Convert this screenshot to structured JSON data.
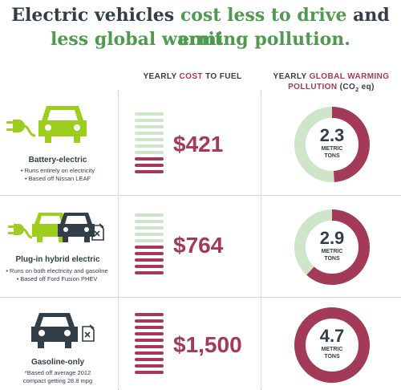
{
  "header": {
    "title_line1_part1": "Electric vehicles ",
    "title_line1_part2": "cost less to drive",
    "title_line1_part3": " and ",
    "title_line1_part4": "emit",
    "title_line2": "less global warming pollution."
  },
  "columns": {
    "cost_prefix": "YEARLY ",
    "cost_accent": "COST",
    "cost_suffix": " TO FUEL",
    "pollution_prefix": "YEARLY ",
    "pollution_accent": "GLOBAL WARMING POLLUTION",
    "pollution_suffix": " (CO",
    "pollution_sub": "2",
    "pollution_end": " eq)"
  },
  "colors": {
    "green": "#9ccd1f",
    "dark": "#333f48",
    "crimson": "#a33a57",
    "light_green": "#cfe5c9",
    "title_green": "#4f9a4e"
  },
  "chart_data": {
    "type": "bar",
    "categories": [
      "Battery-electric",
      "Plug-in hybrid electric",
      "Gasoline-only"
    ],
    "series": [
      {
        "name": "YEARLY COST TO FUEL",
        "values": [
          421,
          764,
          1500
        ],
        "labels": [
          "$421",
          "$764",
          "$1,500"
        ]
      },
      {
        "name": "YEARLY GLOBAL WARMING POLLUTION (CO2 eq)",
        "values": [
          2.3,
          2.9,
          4.7
        ],
        "labels": [
          "2.3",
          "2.9",
          "4.7"
        ]
      }
    ],
    "bars_filled": [
      3,
      5,
      10
    ],
    "bars_total": 10,
    "pollution_max": 4.7,
    "unit_line1": "METRIC",
    "unit_line2": "TONS"
  },
  "rows": [
    {
      "title": "Battery-electric",
      "notes": [
        "• Runs entirely on electricity",
        "• Based off Nissan LEAF"
      ],
      "icons": [
        "plug-icon",
        "car-icon"
      ]
    },
    {
      "title": "Plug-in hybrid electric",
      "notes": [
        "• Runs on both electricity and gasoline",
        "• Based off Ford Fusion PHEV"
      ],
      "icons": [
        "plug-icon",
        "car-icon",
        "car-icon",
        "fuel-can-icon"
      ]
    },
    {
      "title": "Gasoline-only",
      "notes": [
        "*Based off average 2012",
        "compact getting 28.8 mpg"
      ],
      "icons": [
        "car-icon",
        "fuel-can-icon"
      ]
    }
  ]
}
